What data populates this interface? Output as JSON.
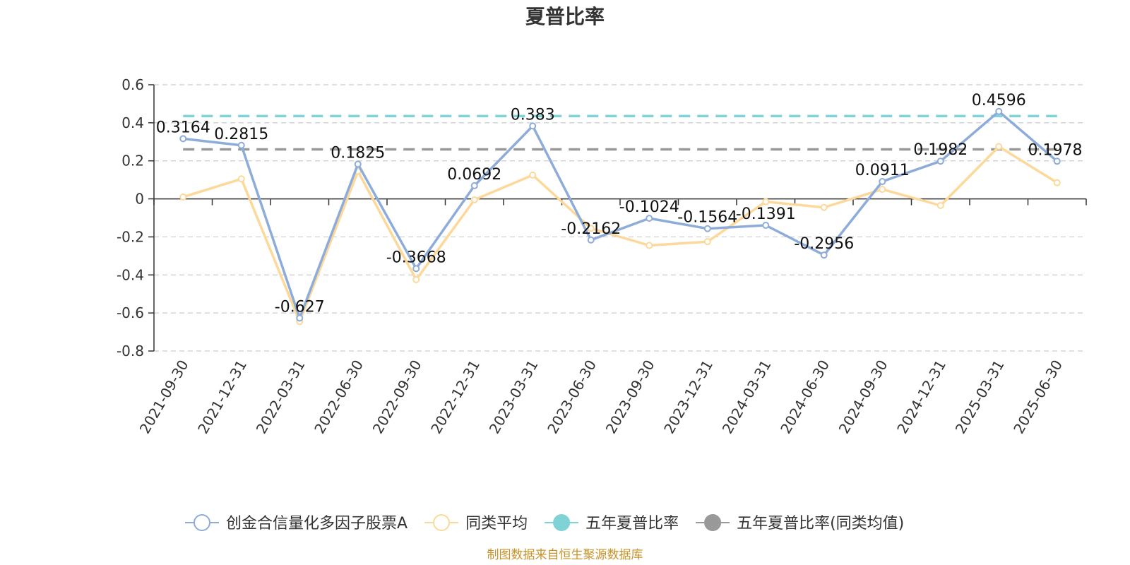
{
  "chart_data": {
    "type": "line",
    "title": "夏普比率",
    "categories": [
      "2021-09-30",
      "2021-12-31",
      "2022-03-31",
      "2022-06-30",
      "2022-09-30",
      "2022-12-31",
      "2023-03-31",
      "2023-06-30",
      "2023-09-30",
      "2023-12-31",
      "2024-03-31",
      "2024-06-30",
      "2024-09-30",
      "2024-12-31",
      "2025-03-31",
      "2025-06-30"
    ],
    "ylim": [
      -0.8,
      0.6
    ],
    "yticks": [
      0.6,
      0.4,
      0.2,
      0,
      -0.2,
      -0.4,
      -0.6,
      -0.8
    ],
    "ytick_labels": [
      "0.6",
      "0.4",
      "0.2",
      "0",
      "-0.2",
      "-0.4",
      "-0.6",
      "-0.8"
    ],
    "grid": true,
    "legend_position": "bottom",
    "series": [
      {
        "name": "创金合信量化多因子股票A",
        "color": "#8eacd9",
        "values": [
          0.3164,
          0.2815,
          -0.627,
          0.1825,
          -0.3668,
          0.0692,
          0.383,
          -0.2162,
          -0.1024,
          -0.1564,
          -0.1391,
          -0.2956,
          0.0911,
          0.1982,
          0.4596,
          0.1978
        ],
        "value_labels": [
          "0.3164",
          "0.2815",
          "-0.627",
          "0.1825",
          "-0.3668",
          "0.0692",
          "0.383",
          "-0.2162",
          "-0.1024",
          "-0.1564",
          "-0.1391",
          "-0.2956",
          "0.0911",
          "0.1982",
          "0.4596",
          "0.1978"
        ]
      },
      {
        "name": "同类平均",
        "color": "#fcd99a",
        "values": [
          0.01,
          0.105,
          -0.645,
          0.145,
          -0.425,
          -0.005,
          0.125,
          -0.155,
          -0.245,
          -0.225,
          -0.015,
          -0.045,
          0.05,
          -0.035,
          0.275,
          0.085
        ]
      }
    ],
    "reference_lines": [
      {
        "name": "五年夏普比率",
        "value": 0.435,
        "color": "#7fd3d6"
      },
      {
        "name": "五年夏普比率(同类均值)",
        "value": 0.26,
        "color": "#999999"
      }
    ]
  },
  "source_note": "制图数据来自恒生聚源数据库",
  "source_note_color": "#c8922a"
}
